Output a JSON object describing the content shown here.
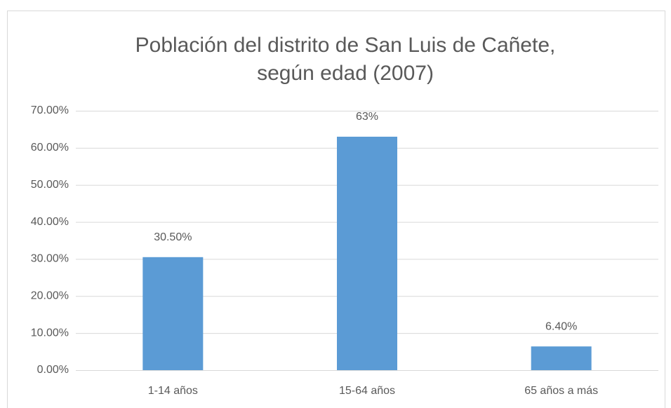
{
  "chart_data": {
    "type": "bar",
    "title": [
      "Población del distrito de San Luis de Cañete,",
      "según edad (2007)"
    ],
    "categories": [
      "1-14 años",
      "15-64 años",
      "65 años a más"
    ],
    "values": [
      30.5,
      63,
      6.4
    ],
    "value_labels": [
      "30.50%",
      "63%",
      "6.40%"
    ],
    "color": "#5b9bd5",
    "ylim": [
      0,
      70
    ],
    "yticks": [
      {
        "value": 0,
        "label": "0.00%"
      },
      {
        "value": 10,
        "label": "10.00%"
      },
      {
        "value": 20,
        "label": "20.00%"
      },
      {
        "value": 30,
        "label": "30.00%"
      },
      {
        "value": 40,
        "label": "40.00%"
      },
      {
        "value": 50,
        "label": "50.00%"
      },
      {
        "value": 60,
        "label": "60.00%"
      },
      {
        "value": 70,
        "label": "70.00%"
      }
    ],
    "grid": true
  }
}
